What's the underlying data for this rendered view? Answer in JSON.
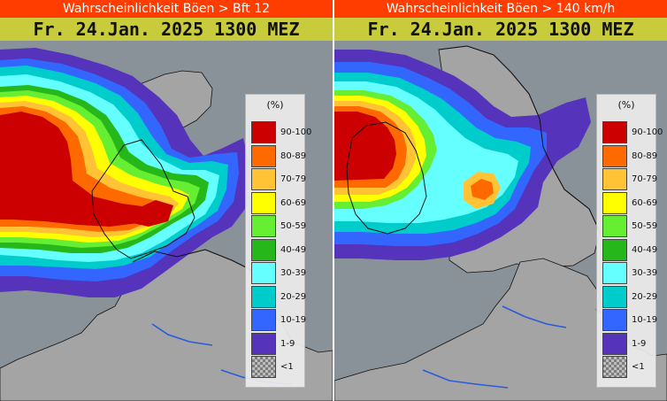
{
  "panels": [
    {
      "header": "Wahrscheinlichkeit Böen > Bft 12",
      "subtitle": "Fr. 24.Jan. 2025 1300 MEZ"
    },
    {
      "header": "Wahrscheinlichkeit Böen > 140 km/h",
      "subtitle": "Fr. 24.Jan. 2025 1300 MEZ"
    }
  ],
  "legend": {
    "unit": "(%)",
    "items": [
      {
        "label": "90-100",
        "color": "#cc0000"
      },
      {
        "label": "80-89",
        "color": "#ff6a00"
      },
      {
        "label": "70-79",
        "color": "#ffc335"
      },
      {
        "label": "60-69",
        "color": "#ffff00"
      },
      {
        "label": "50-59",
        "color": "#66ee33"
      },
      {
        "label": "40-49",
        "color": "#26b81a"
      },
      {
        "label": "30-39",
        "color": "#66ffff"
      },
      {
        "label": "20-29",
        "color": "#00cccc"
      },
      {
        "label": "10-19",
        "color": "#3366ff"
      },
      {
        "label": "1-9",
        "color": "#5533bb"
      },
      {
        "label": "<1",
        "color": "checker"
      }
    ]
  },
  "colors": {
    "header_background": "#ff3d00",
    "subtitle_background": "#c8cc3c",
    "sea": "#8a9299",
    "land": "#a5a5a5",
    "rivers": "#2a5bd8"
  }
}
